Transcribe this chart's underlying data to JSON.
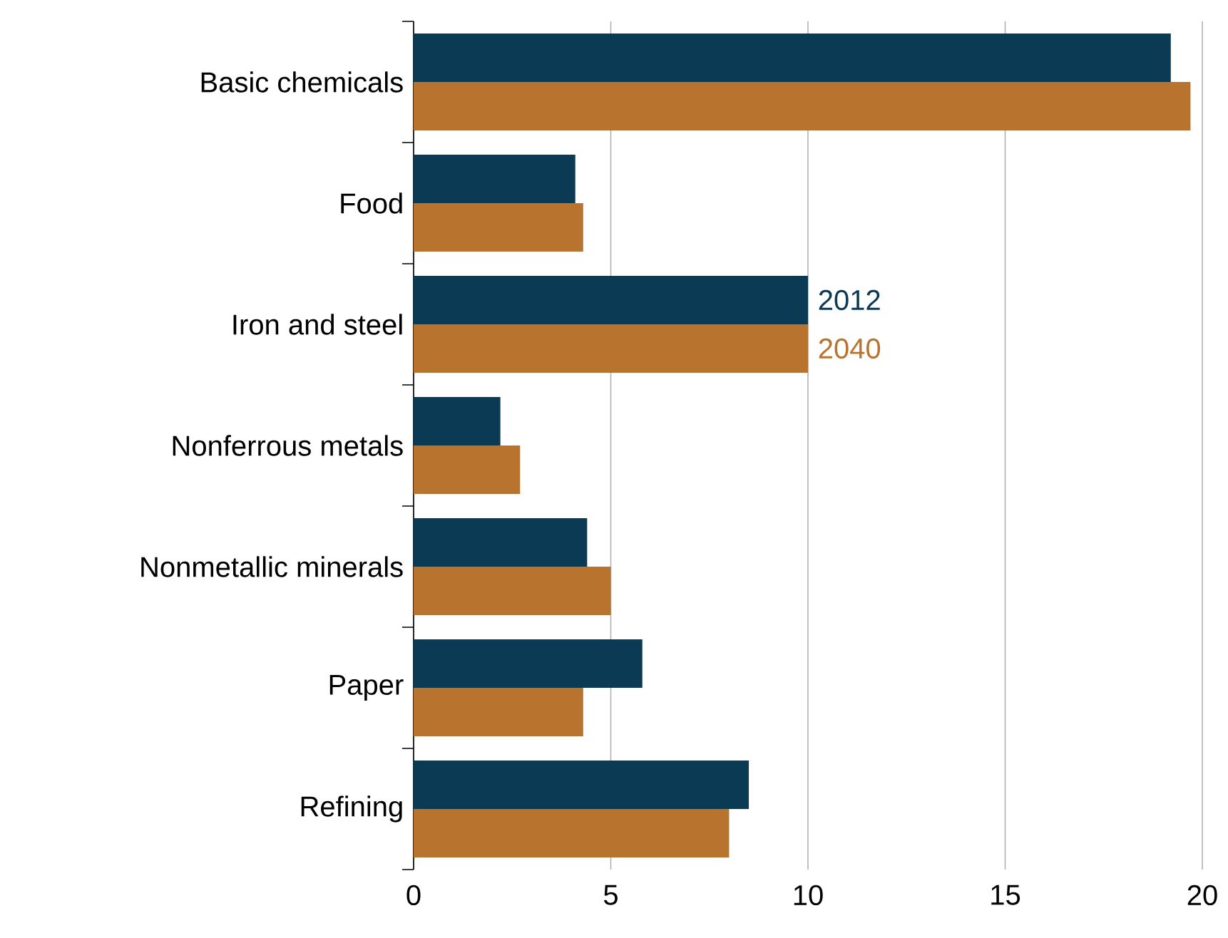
{
  "chart_data": {
    "type": "bar",
    "orientation": "horizontal",
    "categories": [
      "Basic chemicals",
      "Food",
      "Iron and steel",
      "Nonferrous metals",
      "Nonmetallic minerals",
      "Paper",
      "Refining"
    ],
    "series": [
      {
        "name": "2012",
        "color": "#0b3a55",
        "values": [
          19.2,
          4.1,
          10.0,
          2.2,
          4.4,
          5.8,
          8.5
        ]
      },
      {
        "name": "2040",
        "color": "#b8732e",
        "values": [
          19.7,
          4.3,
          10.0,
          2.7,
          5.0,
          4.3,
          8.0
        ]
      }
    ],
    "xlim": [
      0,
      20
    ],
    "xticks": [
      0,
      5,
      10,
      15,
      20
    ],
    "grid": "x",
    "legend": false
  }
}
